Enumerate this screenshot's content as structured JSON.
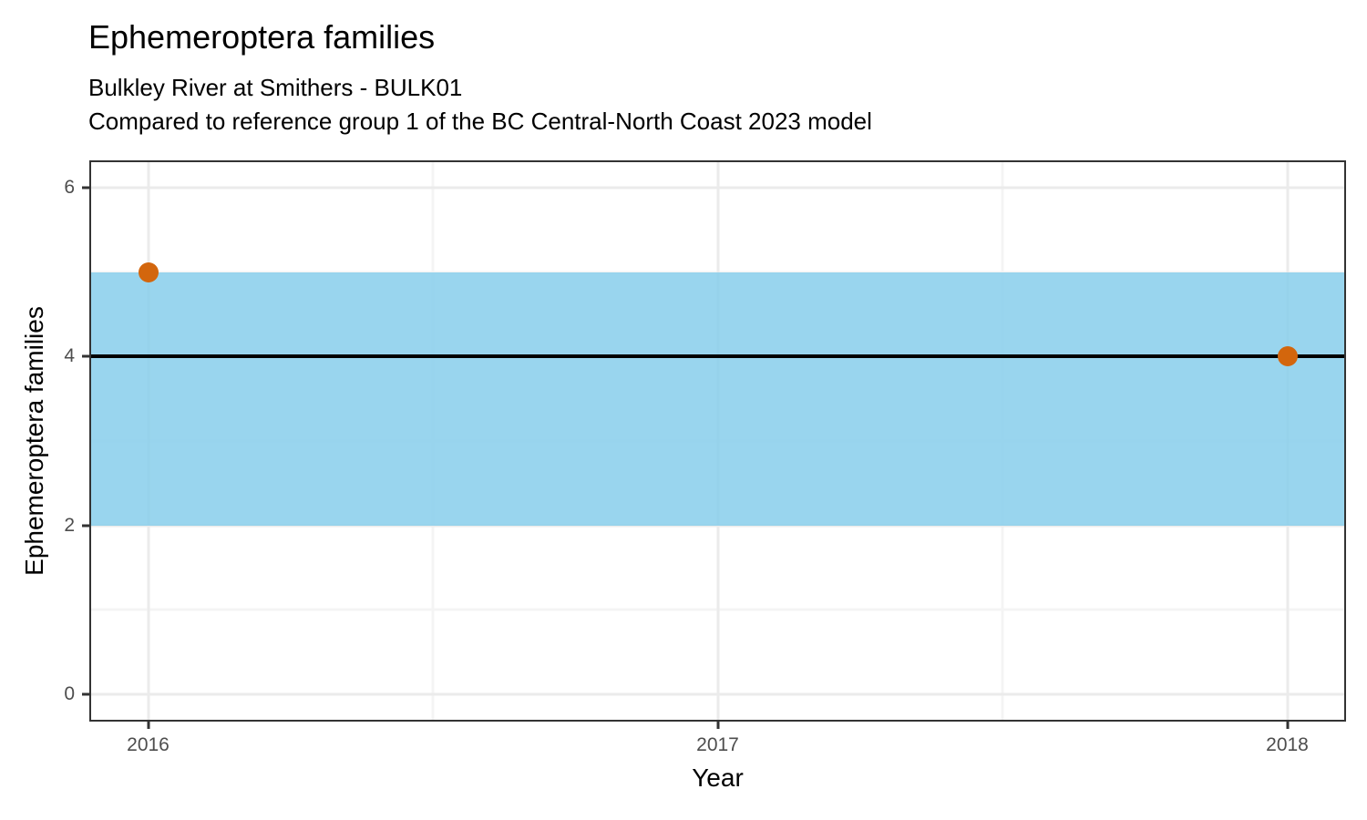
{
  "header": {
    "title": "Ephemeroptera families",
    "subtitle_line1": "Bulkley River at Smithers - BULK01",
    "subtitle_line2": "Compared to reference group 1 of the BC Central-North Coast 2023 model"
  },
  "chart_data": {
    "type": "scatter",
    "title": "Ephemeroptera families",
    "subtitle": "Bulkley River at Smithers - BULK01 / Compared to reference group 1 of the BC Central-North Coast 2023 model",
    "xlabel": "Year",
    "ylabel": "Ephemeroptera families",
    "xlim": [
      2015.9,
      2018.1
    ],
    "ylim": [
      -0.3,
      6.3
    ],
    "x_major_ticks": [
      2016,
      2017,
      2018
    ],
    "x_minor_gridlines": [
      2016.5,
      2017.5
    ],
    "y_major_ticks": [
      0,
      2,
      4,
      6
    ],
    "y_minor_gridlines": [
      1,
      3,
      5
    ],
    "grid": "on",
    "legend": "none",
    "series": [
      {
        "name": "Observed value",
        "type": "scatter",
        "color": "#D3660D",
        "points": [
          {
            "x": 2016,
            "y": 5
          },
          {
            "x": 2018,
            "y": 4
          }
        ]
      }
    ],
    "reference_band": {
      "name": "Reference range",
      "ymin": 2,
      "ymax": 5,
      "color": "#87CEEB",
      "alpha": 0.85
    },
    "reference_line": {
      "name": "Reference value",
      "y": 4,
      "color": "#000000"
    },
    "colors": {
      "point": "#D3660D",
      "band": "#87CEEB",
      "reference_line": "#000000",
      "grid_major": "#EBEBEB",
      "grid_minor": "#F4F4F4",
      "panel_border": "#333333",
      "tick_label": "#4D4D4D"
    }
  }
}
